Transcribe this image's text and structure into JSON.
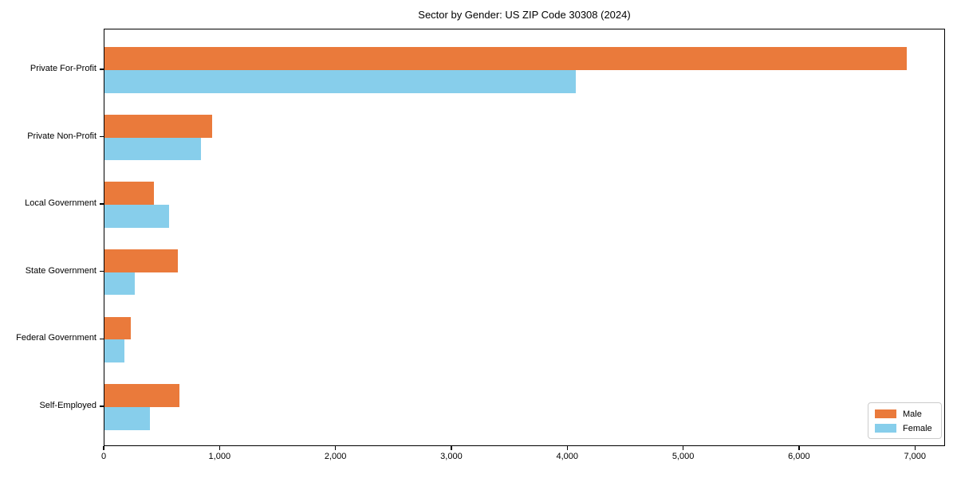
{
  "title": "Sector by Gender: US ZIP Code 30308 (2024)",
  "chart_data": {
    "type": "bar",
    "orientation": "horizontal",
    "title": "Sector by Gender: US ZIP Code 30308 (2024)",
    "categories": [
      "Private For-Profit",
      "Private Non-Profit",
      "Local Government",
      "State Government",
      "Federal Government",
      "Self-Employed"
    ],
    "series": [
      {
        "name": "Male",
        "color": "#EA7A3B",
        "values": [
          6920,
          930,
          430,
          630,
          230,
          650
        ]
      },
      {
        "name": "Female",
        "color": "#87CEEB",
        "values": [
          4070,
          830,
          560,
          260,
          170,
          390
        ]
      }
    ],
    "xlabel": "",
    "ylabel": "",
    "xlim": [
      0,
      7260
    ],
    "xticks": [
      0,
      1000,
      2000,
      3000,
      4000,
      5000,
      6000,
      7000
    ],
    "xtick_labels": [
      "0",
      "1,000",
      "2,000",
      "3,000",
      "4,000",
      "5,000",
      "6,000",
      "7,000"
    ],
    "legend": {
      "position": "lower right",
      "entries": [
        "Male",
        "Female"
      ]
    },
    "grid": false
  },
  "colors": {
    "male": "#EA7A3B",
    "female": "#87CEEB",
    "axis": "#000000",
    "legend_border": "#cccccc"
  }
}
